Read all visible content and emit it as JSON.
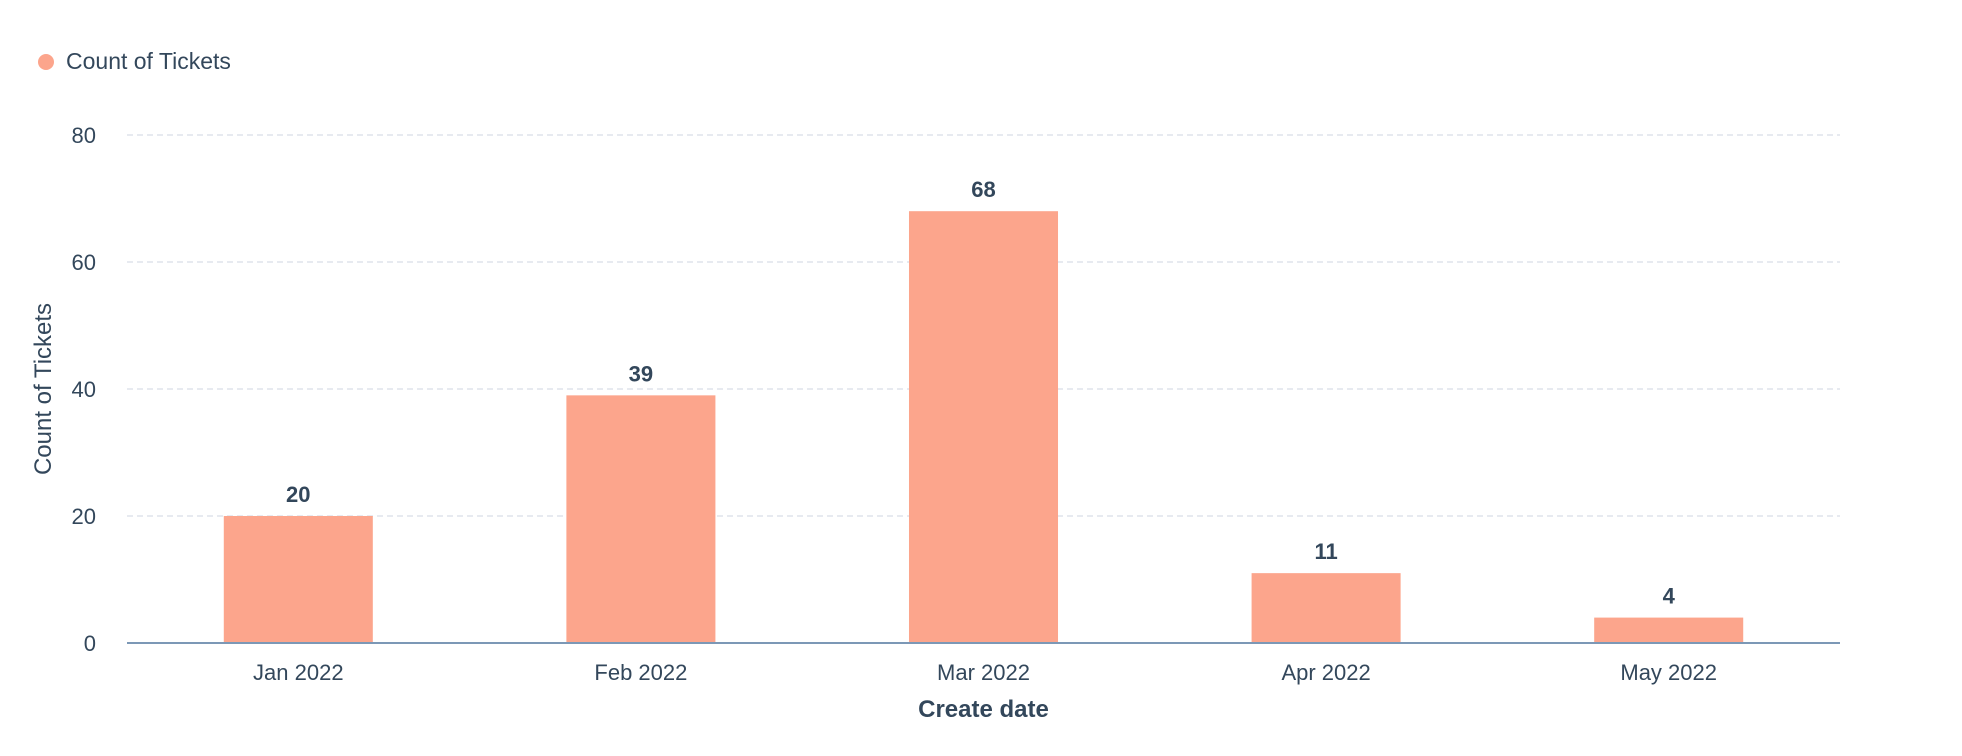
{
  "legend": {
    "label": "Count of Tickets",
    "color": "#fca58c"
  },
  "chart_data": {
    "type": "bar",
    "categories": [
      "Jan 2022",
      "Feb 2022",
      "Mar 2022",
      "Apr 2022",
      "May 2022"
    ],
    "series": [
      {
        "name": "Count of Tickets",
        "values": [
          20,
          39,
          68,
          11,
          4
        ],
        "color": "#fca58c"
      }
    ],
    "xlabel": "Create date",
    "ylabel": "Count of Tickets",
    "ylim": [
      0,
      80
    ],
    "yticks": [
      0,
      20,
      40,
      60,
      80
    ],
    "grid": true,
    "legend_position": "top-left",
    "data_labels": true
  },
  "colors": {
    "bar": "#fca58c",
    "text": "#33475b",
    "grid": "#dfe3eb",
    "axis": "#7c98b6"
  }
}
